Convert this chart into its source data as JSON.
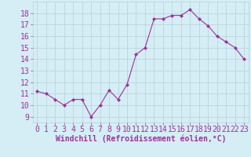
{
  "x": [
    0,
    1,
    2,
    3,
    4,
    5,
    6,
    7,
    8,
    9,
    10,
    11,
    12,
    13,
    14,
    15,
    16,
    17,
    18,
    19,
    20,
    21,
    22,
    23
  ],
  "y": [
    11.2,
    11.0,
    10.5,
    10.0,
    10.5,
    10.5,
    9.0,
    10.0,
    11.3,
    10.5,
    11.8,
    14.4,
    15.0,
    17.5,
    17.5,
    17.8,
    17.8,
    18.3,
    17.5,
    16.9,
    16.0,
    15.5,
    15.0,
    14.0
  ],
  "line_color": "#993399",
  "marker": "D",
  "marker_size": 2,
  "bg_color": "#d5edf5",
  "grid_color": "#b8cfd8",
  "xlabel": "Windchill (Refroidissement éolien,°C)",
  "xlabel_color": "#993399",
  "xlabel_fontsize": 7,
  "tick_color": "#993399",
  "tick_fontsize": 7,
  "ylim": [
    8.5,
    19.0
  ],
  "xlim": [
    -0.5,
    23.5
  ],
  "yticks": [
    9,
    10,
    11,
    12,
    13,
    14,
    15,
    16,
    17,
    18
  ],
  "xticks": [
    0,
    1,
    2,
    3,
    4,
    5,
    6,
    7,
    8,
    9,
    10,
    11,
    12,
    13,
    14,
    15,
    16,
    17,
    18,
    19,
    20,
    21,
    22,
    23
  ]
}
